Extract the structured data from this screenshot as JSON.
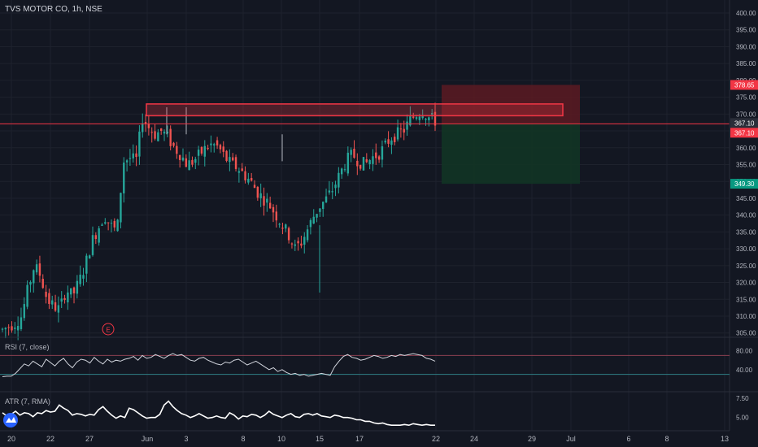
{
  "header": {
    "title": "TVS MOTOR CO, 1h, NSE"
  },
  "colors": {
    "background": "#131722",
    "up": "#26a69a",
    "down": "#ef5350",
    "grid": "#1e222d",
    "text": "#b2b5be",
    "resistance_zone": "#f23645",
    "stop_zone": "#5c1a22",
    "target_zone": "#123425",
    "price_line": "#f23645",
    "rsi_line": "#d1d4dc",
    "atr_line": "#ffffff"
  },
  "price_axis": {
    "ticks": [
      "400.00",
      "395.00",
      "390.00",
      "385.00",
      "380.00",
      "375.00",
      "370.00",
      "365.00",
      "360.00",
      "355.00",
      "350.00",
      "345.00",
      "340.00",
      "335.00",
      "330.00",
      "325.00",
      "320.00",
      "315.00",
      "310.00",
      "305.00"
    ],
    "badges": [
      {
        "label": "378.65",
        "color": "#f23645"
      },
      {
        "label": "367.10",
        "color": "#2a2e39"
      },
      {
        "label": "367.10",
        "color": "#f23645"
      },
      {
        "label": "349.30",
        "color": "#089981"
      }
    ]
  },
  "time_axis": {
    "labels": [
      "20",
      "22",
      "27",
      "Jun",
      "3",
      "8",
      "10",
      "15",
      "17",
      "22",
      "24",
      "29",
      "Jul",
      "6",
      "8",
      "13"
    ]
  },
  "event_marker": {
    "label": "E"
  },
  "rsi": {
    "title": "RSI (7, close)",
    "ticks": [
      "80.00",
      "40.00"
    ],
    "upper": 70,
    "lower": 30,
    "values": [
      25,
      26,
      26,
      32,
      42,
      52,
      48,
      58,
      52,
      46,
      62,
      55,
      48,
      58,
      64,
      52,
      44,
      56,
      62,
      60,
      54,
      66,
      58,
      52,
      62,
      56,
      60,
      58,
      62,
      64,
      68,
      60,
      70,
      64,
      66,
      72,
      68,
      64,
      70,
      74,
      70,
      72,
      66,
      60,
      58,
      64,
      66,
      60,
      56,
      52,
      50,
      56,
      54,
      60,
      62,
      56,
      50,
      54,
      58,
      52,
      46,
      40,
      44,
      36,
      40,
      34,
      30,
      32,
      28,
      30,
      26,
      28,
      30,
      32,
      30,
      28,
      46,
      58,
      68,
      72,
      66,
      64,
      60,
      62,
      66,
      70,
      68,
      64,
      66,
      70,
      68,
      72,
      70,
      72,
      74,
      72,
      70,
      64,
      62,
      58
    ]
  },
  "atr": {
    "title": "ATR (7, RMA)",
    "ticks": [
      "7.50",
      "5.00"
    ],
    "values": [
      5.6,
      5.2,
      5.4,
      5.8,
      5.3,
      5.6,
      5.5,
      5.1,
      5.6,
      5.5,
      5.9,
      5.7,
      5.8,
      6.6,
      6.2,
      5.9,
      5.3,
      5.5,
      5.4,
      5.2,
      5.4,
      5.3,
      6.0,
      6.4,
      5.8,
      5.3,
      4.9,
      5.2,
      5.0,
      6.2,
      6.0,
      5.6,
      5.2,
      4.9,
      5.0,
      5.0,
      5.4,
      6.6,
      7.1,
      6.4,
      5.9,
      5.5,
      5.3,
      5.0,
      5.2,
      5.5,
      5.2,
      4.9,
      5.0,
      5.2,
      5.0,
      4.9,
      5.6,
      5.3,
      4.8,
      5.2,
      5.1,
      5.4,
      5.3,
      5.0,
      5.3,
      5.8,
      5.4,
      5.2,
      5.0,
      5.3,
      5.5,
      5.1,
      5.0,
      5.4,
      5.5,
      5.3,
      5.5,
      5.2,
      5.1,
      5.0,
      5.3,
      5.2,
      5.0,
      5.0,
      4.9,
      4.7,
      4.7,
      4.5,
      4.5,
      4.3,
      4.2,
      4.3,
      4.1,
      4.0,
      4.0,
      4.0,
      4.1,
      4.0,
      4.2,
      4.1,
      4.0,
      4.1,
      4.0,
      4.0
    ]
  },
  "chart_data": {
    "type": "candlestick",
    "title": "TVS MOTOR CO, 1h, NSE",
    "ylim": [
      303,
      402
    ],
    "x_labels": [
      "20",
      "22",
      "27",
      "Jun",
      "3",
      "8",
      "10",
      "15",
      "17",
      "22",
      "24",
      "29",
      "Jul",
      "6",
      "8",
      "13"
    ],
    "close_path": [
      306,
      307,
      308,
      310,
      318,
      325,
      322,
      315,
      313,
      312,
      318,
      316,
      320,
      325,
      332,
      336,
      340,
      337,
      335,
      356,
      357,
      356,
      369,
      366,
      364,
      365,
      363,
      360,
      358,
      355,
      356,
      358,
      360,
      361,
      360,
      357,
      355,
      354,
      352,
      350,
      347,
      345,
      343,
      340,
      337,
      334,
      330,
      332,
      336,
      340,
      343,
      345,
      348,
      352,
      356,
      358,
      356,
      355,
      357,
      358,
      360,
      363,
      364,
      365,
      368,
      370,
      371,
      369,
      368
    ],
    "resistance_zone": {
      "low": 369.5,
      "high": 373.0
    },
    "position": {
      "entry": 367.1,
      "stop": 378.65,
      "target": 349.3
    },
    "current_price": 367.1
  }
}
